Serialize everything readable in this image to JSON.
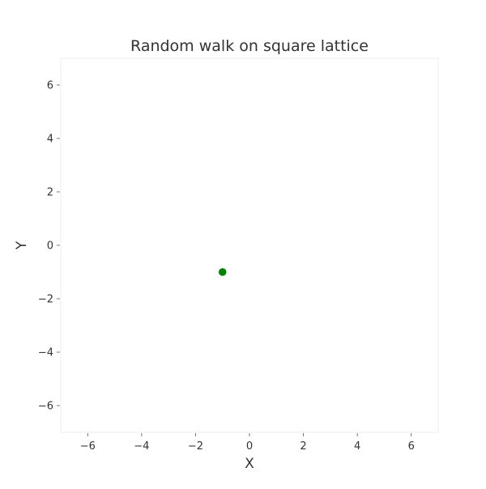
{
  "chart_data": {
    "type": "scatter",
    "title": "Random walk on square lattice",
    "xlabel": "X",
    "ylabel": "Y",
    "xlim": [
      -7,
      7
    ],
    "ylim": [
      -7,
      7
    ],
    "xticks": [
      -6,
      -4,
      -2,
      0,
      2,
      4,
      6
    ],
    "yticks": [
      -6,
      -4,
      -2,
      0,
      2,
      4,
      6
    ],
    "xtick_labels": [
      "−6",
      "−4",
      "−2",
      "0",
      "2",
      "4",
      "6"
    ],
    "ytick_labels": [
      "−6",
      "−4",
      "−2",
      "0",
      "2",
      "4",
      "6"
    ],
    "grid": false,
    "series": [
      {
        "points": [
          {
            "x": -1,
            "y": -1
          }
        ],
        "color": "#008000"
      }
    ]
  }
}
